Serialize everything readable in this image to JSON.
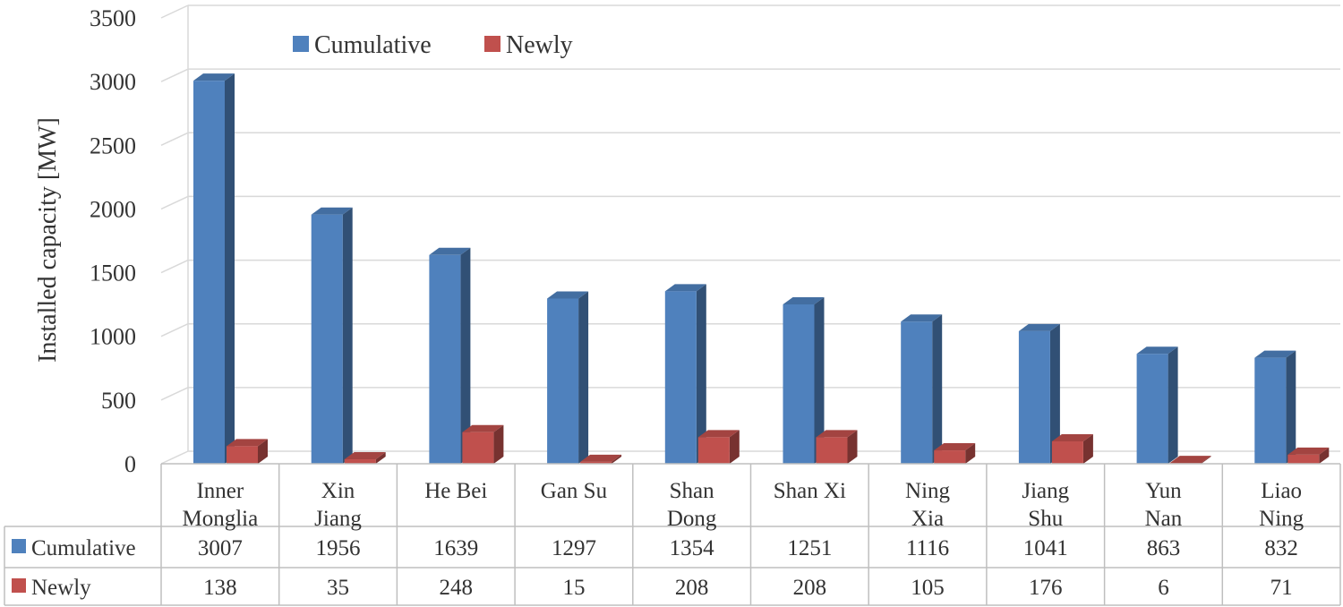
{
  "chart_data": {
    "type": "bar",
    "style": "3d-clustered-column-with-data-table",
    "ylabel": "Installed capacity [MW]",
    "xlabel": "",
    "ylim": [
      0,
      3500
    ],
    "yticks": [
      0,
      500,
      1000,
      1500,
      2000,
      2500,
      3000,
      3500
    ],
    "grid": true,
    "legend_position": "top",
    "categories": [
      [
        "Inner",
        "Monglia"
      ],
      [
        "Xin",
        "Jiang"
      ],
      [
        "He Bei"
      ],
      [
        "Gan Su"
      ],
      [
        "Shan",
        "Dong"
      ],
      [
        "Shan Xi"
      ],
      [
        "Ning",
        "Xia"
      ],
      [
        "Jiang",
        "Shu"
      ],
      [
        "Yun",
        "Nan"
      ],
      [
        "Liao",
        "Ning"
      ]
    ],
    "series": [
      {
        "name": "Cumulative",
        "color": "#4f81bd",
        "values": [
          3007,
          1956,
          1639,
          1297,
          1354,
          1251,
          1116,
          1041,
          863,
          832
        ]
      },
      {
        "name": "Newly",
        "color": "#c0504d",
        "values": [
          138,
          35,
          248,
          15,
          208,
          208,
          105,
          176,
          6,
          71
        ]
      }
    ]
  }
}
